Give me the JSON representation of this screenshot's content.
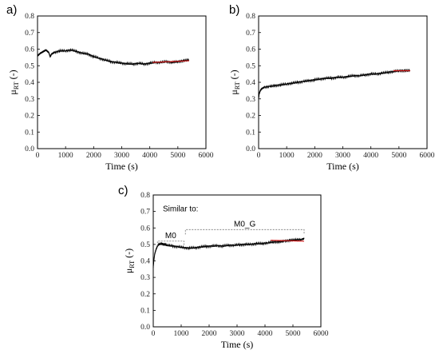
{
  "chart_data": [
    {
      "panel": "a)",
      "type": "line",
      "xlabel": "Time (s)",
      "ylabel_main": "μ",
      "ylabel_sub": "RT",
      "ylabel_unit": "(-)",
      "xlim": [
        0,
        6000
      ],
      "ylim": [
        0.0,
        0.8
      ],
      "xticks": [
        "0",
        "1000",
        "2000",
        "3000",
        "4000",
        "5000",
        "6000"
      ],
      "yticks": [
        "0.0",
        "0.1",
        "0.2",
        "0.3",
        "0.4",
        "0.5",
        "0.6",
        "0.7",
        "0.8"
      ],
      "series": [
        {
          "color": "#000000",
          "x": [
            0,
            100,
            200,
            300,
            400,
            450,
            500,
            600,
            800,
            1000,
            1200,
            1400,
            1600,
            1800,
            2000,
            2200,
            2400,
            2600,
            2800,
            3000,
            3200,
            3400,
            3600,
            3800,
            4000,
            4200,
            4400,
            4600,
            4800,
            5000,
            5200,
            5400
          ],
          "y": [
            0.56,
            0.575,
            0.585,
            0.595,
            0.58,
            0.555,
            0.57,
            0.58,
            0.59,
            0.59,
            0.595,
            0.585,
            0.575,
            0.57,
            0.555,
            0.545,
            0.535,
            0.525,
            0.52,
            0.515,
            0.512,
            0.51,
            0.515,
            0.51,
            0.515,
            0.52,
            0.52,
            0.525,
            0.52,
            0.525,
            0.53,
            0.535
          ]
        },
        {
          "color": "#d01818",
          "x": [
            4100,
            5400
          ],
          "y": [
            0.52,
            0.53
          ]
        }
      ]
    },
    {
      "panel": "b)",
      "type": "line",
      "xlabel": "Time (s)",
      "ylabel_main": "μ",
      "ylabel_sub": "RT",
      "ylabel_unit": "(-)",
      "xlim": [
        0,
        6000
      ],
      "ylim": [
        0.0,
        0.8
      ],
      "xticks": [
        "0",
        "1000",
        "2000",
        "3000",
        "4000",
        "5000",
        "6000"
      ],
      "yticks": [
        "0.0",
        "0.1",
        "0.2",
        "0.3",
        "0.4",
        "0.5",
        "0.6",
        "0.7",
        "0.8"
      ],
      "series": [
        {
          "color": "#000000",
          "x": [
            0,
            20,
            60,
            100,
            200,
            400,
            600,
            800,
            1000,
            1200,
            1400,
            1600,
            1800,
            2000,
            2200,
            2400,
            2600,
            2800,
            3000,
            3200,
            3400,
            3600,
            3800,
            4000,
            4200,
            4400,
            4600,
            4800,
            5000,
            5200,
            5400
          ],
          "y": [
            0.3,
            0.33,
            0.35,
            0.36,
            0.37,
            0.375,
            0.38,
            0.385,
            0.39,
            0.395,
            0.4,
            0.405,
            0.41,
            0.415,
            0.42,
            0.425,
            0.425,
            0.43,
            0.43,
            0.435,
            0.44,
            0.44,
            0.445,
            0.45,
            0.45,
            0.455,
            0.46,
            0.465,
            0.47,
            0.47,
            0.47
          ]
        },
        {
          "color": "#d01818",
          "x": [
            4800,
            5400
          ],
          "y": [
            0.47,
            0.47
          ]
        }
      ]
    },
    {
      "panel": "c)",
      "type": "line",
      "xlabel": "Time (s)",
      "ylabel_main": "μ",
      "ylabel_sub": "RT",
      "ylabel_unit": "(-)",
      "xlim": [
        0,
        6000
      ],
      "ylim": [
        0.0,
        0.8
      ],
      "xticks": [
        "0",
        "1000",
        "2000",
        "3000",
        "4000",
        "5000",
        "6000"
      ],
      "yticks": [
        "0.0",
        "0.1",
        "0.2",
        "0.3",
        "0.4",
        "0.5",
        "0.6",
        "0.7",
        "0.8"
      ],
      "annotation_title": "Similar to:",
      "brackets": [
        {
          "label": "M0",
          "x_start": 150,
          "x_end": 1100,
          "y": 0.52
        },
        {
          "label": "M0_G",
          "x_start": 1150,
          "x_end": 5400,
          "y": 0.59
        }
      ],
      "series": [
        {
          "color": "#000000",
          "x": [
            0,
            20,
            50,
            100,
            150,
            200,
            300,
            400,
            500,
            700,
            900,
            1100,
            1300,
            1500,
            1700,
            1900,
            2100,
            2300,
            2500,
            2700,
            2900,
            3100,
            3300,
            3500,
            3700,
            3900,
            4100,
            4300,
            4500,
            4700,
            4900,
            5100,
            5300,
            5400
          ],
          "y": [
            0.36,
            0.4,
            0.44,
            0.47,
            0.49,
            0.5,
            0.505,
            0.5,
            0.495,
            0.49,
            0.485,
            0.48,
            0.478,
            0.48,
            0.485,
            0.488,
            0.49,
            0.492,
            0.49,
            0.495,
            0.495,
            0.498,
            0.5,
            0.5,
            0.505,
            0.505,
            0.51,
            0.515,
            0.515,
            0.52,
            0.525,
            0.528,
            0.53,
            0.535
          ]
        },
        {
          "color": "#d01818",
          "x": [
            4200,
            5400
          ],
          "y": [
            0.525,
            0.52
          ]
        }
      ]
    }
  ]
}
